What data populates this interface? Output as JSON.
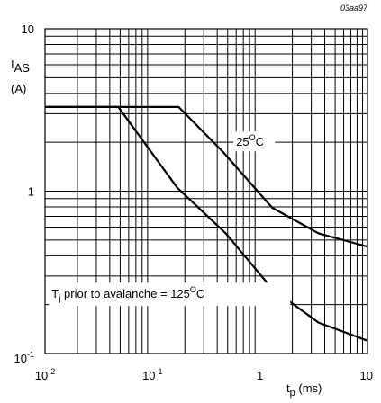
{
  "figure_id": "03aa97",
  "chart_data": {
    "type": "line",
    "title": "",
    "xlabel": {
      "main": "t",
      "sub": "p",
      "unit": " (ms)"
    },
    "ylabel": {
      "main": "I",
      "sub": "AS",
      "unit": "(A)"
    },
    "x_scale": "log",
    "y_scale": "log",
    "xlim": [
      0.01,
      10
    ],
    "ylim": [
      0.1,
      10
    ],
    "grid": true,
    "x_ticks": [
      {
        "value": 0.01,
        "base": "10",
        "exp": "-2"
      },
      {
        "value": 0.1,
        "base": "10",
        "exp": "-1"
      },
      {
        "value": 1,
        "base": "1",
        "exp": ""
      },
      {
        "value": 10,
        "base": "10",
        "exp": ""
      }
    ],
    "y_ticks": [
      {
        "value": 0.1,
        "base": "10",
        "exp": "-1"
      },
      {
        "value": 1,
        "base": "1",
        "exp": ""
      },
      {
        "value": 10,
        "base": "10",
        "exp": ""
      }
    ],
    "series": [
      {
        "x": [
          0.01,
          0.175,
          0.45,
          1.3,
          3.5,
          10
        ],
        "y": [
          3.3,
          3.3,
          1.75,
          0.79,
          0.55,
          0.455
        ]
      },
      {
        "x": [
          0.01,
          0.048,
          0.17,
          0.48,
          1.3,
          3.5,
          10
        ],
        "y": [
          3.3,
          3.3,
          1.05,
          0.55,
          0.25,
          0.155,
          0.12
        ]
      }
    ],
    "annotations": [
      {
        "text": "25",
        "sup": "O",
        "tail": "C",
        "x": 0.6,
        "y": 1.9
      },
      {
        "pre": "T",
        "presub": "j",
        "text": " prior to avalanche = 125",
        "sup": "O",
        "tail": "C",
        "x": 0.0115,
        "y": 0.22
      }
    ]
  }
}
